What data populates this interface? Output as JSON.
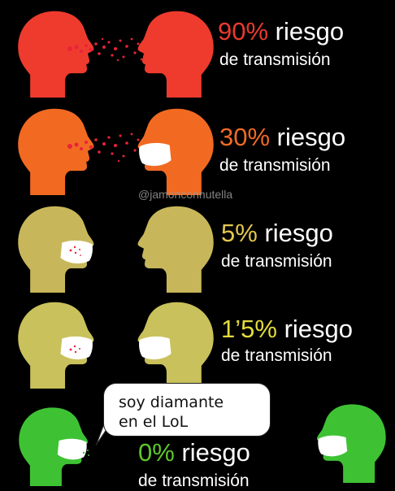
{
  "watermark": "@jamonconnutella",
  "rows": [
    {
      "percent": "90%",
      "word": "riesgo",
      "line2": "de transmisión",
      "color": "#ea3a2f"
    },
    {
      "percent": "30%",
      "word": "riesgo",
      "line2": "de transmisión",
      "color": "#ef6a26"
    },
    {
      "percent": "5%",
      "word": "riesgo",
      "line2": "de transmisión",
      "color": "#e3c74f"
    },
    {
      "percent": "1’5%",
      "word": "riesgo",
      "line2": "de transmisión",
      "color": "#e3dc3c"
    },
    {
      "percent": "0%",
      "word": "riesgo",
      "line2": "de transmisión",
      "color": "#5ec82c"
    }
  ],
  "speech_bubble": {
    "line1": "soy diamante",
    "line2": "en el LoL"
  },
  "colors": {
    "red_head": "#ee3b2e",
    "orange_head": "#f26a22",
    "yellow_head": "#c8b75a",
    "yellow_head2": "#c9c15b",
    "green_head": "#3ec234",
    "spray": "#e8233a",
    "mask": "#ffffff"
  },
  "icons": [
    "left-head-icon",
    "right-head-icon",
    "mask-icon",
    "droplets-icon"
  ]
}
